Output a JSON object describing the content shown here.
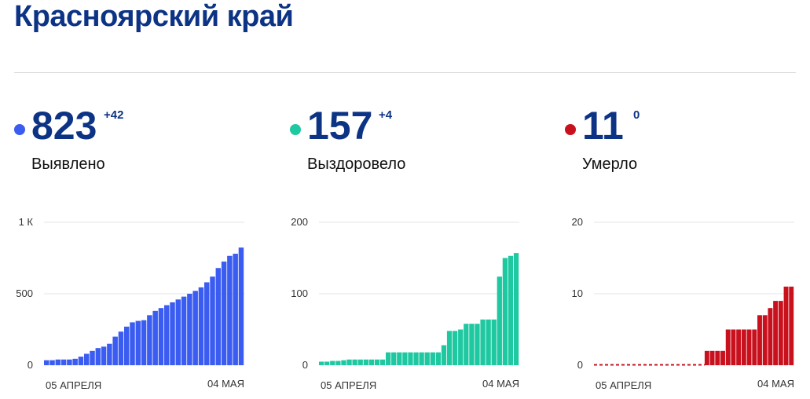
{
  "title": "Красноярский край",
  "chart_data": [
    {
      "type": "bar",
      "headline_value": "823",
      "headline_delta": "+42",
      "label": "Выявлено",
      "color": "#3b5cf0",
      "y_ticks": [
        0,
        500,
        1000
      ],
      "y_tick_labels": [
        "0",
        "500",
        "1 К"
      ],
      "ylim": [
        0,
        1000
      ],
      "x_tick_labels": [
        "05 АПРЕЛЯ",
        "04 МАЯ"
      ],
      "values": [
        35,
        35,
        40,
        40,
        40,
        45,
        60,
        80,
        100,
        120,
        130,
        150,
        200,
        235,
        270,
        300,
        310,
        315,
        350,
        380,
        400,
        420,
        440,
        460,
        480,
        500,
        520,
        545,
        580,
        620,
        680,
        725,
        765,
        780,
        823
      ],
      "dashed_zero": false
    },
    {
      "type": "bar",
      "headline_value": "157",
      "headline_delta": "+4",
      "label": "Выздоровело",
      "color": "#1ec8a0",
      "y_ticks": [
        0,
        100,
        200
      ],
      "y_tick_labels": [
        "0",
        "100",
        "200"
      ],
      "ylim": [
        0,
        200
      ],
      "x_tick_labels": [
        "05 АПРЕЛЯ",
        "04 МАЯ"
      ],
      "values": [
        5,
        5,
        6,
        6,
        7,
        8,
        8,
        8,
        8,
        8,
        8,
        8,
        18,
        18,
        18,
        18,
        18,
        18,
        18,
        18,
        18,
        18,
        28,
        48,
        48,
        50,
        58,
        58,
        58,
        64,
        64,
        64,
        124,
        150,
        153,
        157
      ],
      "dashed_zero": false
    },
    {
      "type": "bar",
      "headline_value": "11",
      "headline_delta": "0",
      "label": "Умерло",
      "color": "#c9111e",
      "y_ticks": [
        0,
        10,
        20
      ],
      "y_tick_labels": [
        "0",
        "10",
        "20"
      ],
      "ylim": [
        0,
        20
      ],
      "x_tick_labels": [
        "05 АПРЕЛЯ",
        "04 МАЯ"
      ],
      "values": [
        0,
        0,
        0,
        0,
        0,
        0,
        0,
        0,
        0,
        0,
        0,
        0,
        0,
        0,
        0,
        0,
        0,
        0,
        0,
        0,
        0,
        2,
        2,
        2,
        2,
        5,
        5,
        5,
        5,
        5,
        5,
        7,
        7,
        8,
        9,
        9,
        11,
        11
      ],
      "dashed_zero": true
    }
  ]
}
